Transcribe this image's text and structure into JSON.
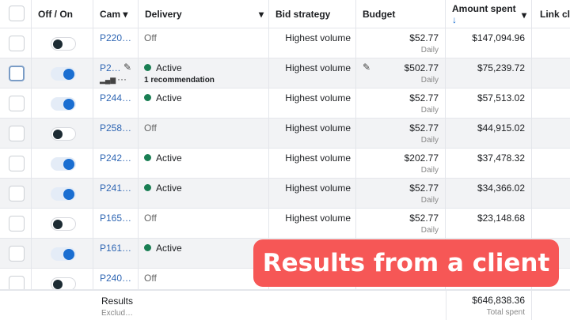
{
  "header": {
    "off_on": "Off / On",
    "cam": "Cam",
    "delivery": "Delivery",
    "bid_strategy": "Bid strategy",
    "budget": "Budget",
    "amount_spent": "Amount spent",
    "link_clicks": "Link cli",
    "sort_arrow": "↓"
  },
  "rows": [
    {
      "name": "P220…",
      "on": false,
      "delivery": "Off",
      "bid": "Highest volume",
      "budget": "$52.77",
      "period": "Daily",
      "spent": "$147,094.96"
    },
    {
      "name": "P2…",
      "on": true,
      "delivery": "Active",
      "rec": "1 recommendation",
      "bid": "Highest volume",
      "budget": "$502.77",
      "period": "Daily",
      "spent": "$75,239.72"
    },
    {
      "name": "P244…",
      "on": true,
      "delivery": "Active",
      "bid": "Highest volume",
      "budget": "$52.77",
      "period": "Daily",
      "spent": "$57,513.02"
    },
    {
      "name": "P258…",
      "on": false,
      "delivery": "Off",
      "bid": "Highest volume",
      "budget": "$52.77",
      "period": "Daily",
      "spent": "$44,915.02"
    },
    {
      "name": "P242…",
      "on": true,
      "delivery": "Active",
      "bid": "Highest volume",
      "budget": "$202.77",
      "period": "Daily",
      "spent": "$37,478.32"
    },
    {
      "name": "P241…",
      "on": true,
      "delivery": "Active",
      "bid": "Highest volume",
      "budget": "$52.77",
      "period": "Daily",
      "spent": "$34,366.02"
    },
    {
      "name": "P165…",
      "on": false,
      "delivery": "Off",
      "bid": "Highest volume",
      "budget": "$52.77",
      "period": "Daily",
      "spent": "$23,148.68"
    },
    {
      "name": "P161…",
      "on": true,
      "delivery": "Active"
    },
    {
      "name": "P240…",
      "on": false,
      "delivery": "Off"
    }
  ],
  "footer": {
    "results": "Results",
    "excluded": "Exclud…",
    "total": "$646,838.36",
    "total_label": "Total spent"
  },
  "overlay": "Results from a client",
  "colors": {
    "active": "#1a7f54",
    "link": "#2f66b3",
    "toggle_on": "#1a6ed1",
    "overlay": "#f65756"
  }
}
